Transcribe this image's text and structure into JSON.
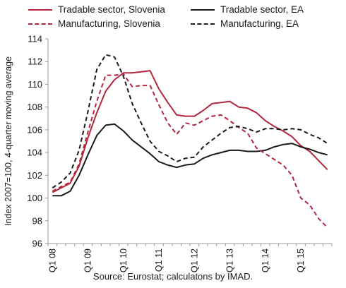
{
  "legend": [
    {
      "label": "Tradable sector, Slovenia",
      "color": "#b3263e",
      "dash": false
    },
    {
      "label": "Tradable sector, EA",
      "color": "#1a1a1a",
      "dash": false
    },
    {
      "label": "Manufacturing, Slovenia",
      "color": "#b3263e",
      "dash": true
    },
    {
      "label": "Manufacturing, EA",
      "color": "#1a1a1a",
      "dash": true
    }
  ],
  "source": "Source: Eurostat; calculatons by IMAD.",
  "chart_data": {
    "type": "line",
    "title": "",
    "ylabel": "Index 2007=100, 4-quarter moving average",
    "xlabel": "",
    "ylim": [
      96,
      114
    ],
    "yticks": [
      96,
      98,
      100,
      102,
      104,
      106,
      108,
      110,
      112,
      114
    ],
    "grid": false,
    "legend_position": "top",
    "x": [
      "Q1 08",
      "Q2 08",
      "Q3 08",
      "Q4 08",
      "Q1 09",
      "Q2 09",
      "Q3 09",
      "Q4 09",
      "Q1 10",
      "Q2 10",
      "Q3 10",
      "Q4 10",
      "Q1 11",
      "Q2 11",
      "Q3 11",
      "Q4 11",
      "Q1 12",
      "Q2 12",
      "Q3 12",
      "Q4 12",
      "Q1 13",
      "Q2 13",
      "Q3 13",
      "Q4 13",
      "Q1 14",
      "Q2 14",
      "Q3 14",
      "Q4 14",
      "Q1 15",
      "Q2 15",
      "Q3 15",
      "Q4 15"
    ],
    "xtick_labels": [
      "Q1 08",
      "Q1 09",
      "Q1 10",
      "Q1 11",
      "Q1 12",
      "Q1 13",
      "Q1 14",
      "Q1 15"
    ],
    "series": [
      {
        "name": "Tradable sector, Slovenia",
        "color": "#b3263e",
        "dash": false,
        "values": [
          100.5,
          100.9,
          101.3,
          102.8,
          105.3,
          107.5,
          109.4,
          110.4,
          111.0,
          111.0,
          111.1,
          111.2,
          109.6,
          108.4,
          107.3,
          107.2,
          107.2,
          107.7,
          108.3,
          108.4,
          108.5,
          108.0,
          107.9,
          107.5,
          106.8,
          106.3,
          105.9,
          105.4,
          104.6,
          104.1,
          103.3,
          102.5
        ]
      },
      {
        "name": "Tradable sector, EA",
        "color": "#1a1a1a",
        "dash": false,
        "values": [
          100.2,
          100.2,
          100.6,
          102.0,
          103.8,
          105.5,
          106.4,
          106.5,
          105.9,
          105.1,
          104.5,
          103.9,
          103.2,
          102.9,
          102.7,
          102.9,
          103.0,
          103.5,
          103.8,
          104.0,
          104.2,
          104.2,
          104.1,
          104.1,
          104.2,
          104.5,
          104.7,
          104.8,
          104.5,
          104.3,
          104.0,
          103.8
        ]
      },
      {
        "name": "Manufacturing, Slovenia",
        "color": "#b3263e",
        "dash": true,
        "values": [
          100.6,
          101.0,
          101.4,
          103.0,
          105.8,
          108.5,
          110.8,
          110.8,
          110.9,
          109.8,
          109.9,
          109.9,
          108.2,
          106.6,
          105.6,
          106.6,
          106.4,
          106.8,
          107.2,
          107.3,
          106.8,
          106.2,
          105.7,
          104.4,
          103.9,
          103.4,
          102.9,
          102.0,
          100.0,
          99.4,
          98.2,
          97.4
        ]
      },
      {
        "name": "Manufacturing, EA",
        "color": "#1a1a1a",
        "dash": true,
        "values": [
          100.9,
          101.4,
          102.2,
          104.2,
          107.6,
          111.3,
          112.6,
          112.4,
          110.7,
          108.3,
          106.6,
          105.0,
          104.1,
          103.7,
          103.2,
          103.5,
          103.6,
          104.5,
          105.1,
          105.7,
          106.2,
          106.3,
          106.1,
          105.8,
          106.1,
          106.1,
          106.0,
          106.1,
          106.0,
          105.6,
          105.3,
          104.8
        ]
      }
    ]
  }
}
